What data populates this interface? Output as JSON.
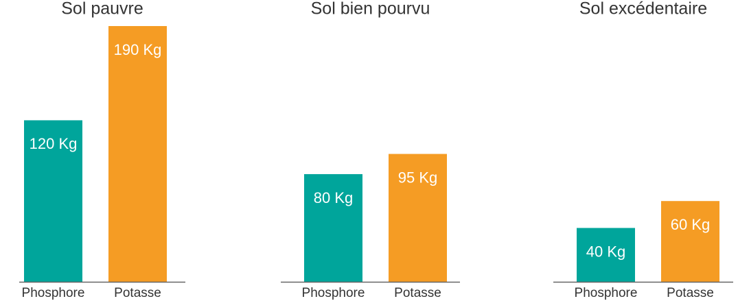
{
  "chart_data": [
    {
      "type": "bar",
      "title": "Sol pauvre",
      "categories": [
        "Phosphore",
        "Potasse"
      ],
      "values": [
        120,
        190
      ],
      "value_labels": [
        "120 Kg",
        "190 Kg"
      ],
      "colors": [
        "#00a59b",
        "#f59c24"
      ]
    },
    {
      "type": "bar",
      "title": "Sol bien pourvu",
      "categories": [
        "Phosphore",
        "Potasse"
      ],
      "values": [
        80,
        95
      ],
      "value_labels": [
        "80 Kg",
        "95 Kg"
      ],
      "colors": [
        "#00a59b",
        "#f59c24"
      ]
    },
    {
      "type": "bar",
      "title": "Sol excédentaire",
      "categories": [
        "Phosphore",
        "Potasse"
      ],
      "values": [
        40,
        60
      ],
      "value_labels": [
        "40 Kg",
        "60 Kg"
      ],
      "colors": [
        "#00a59b",
        "#f59c24"
      ]
    }
  ]
}
